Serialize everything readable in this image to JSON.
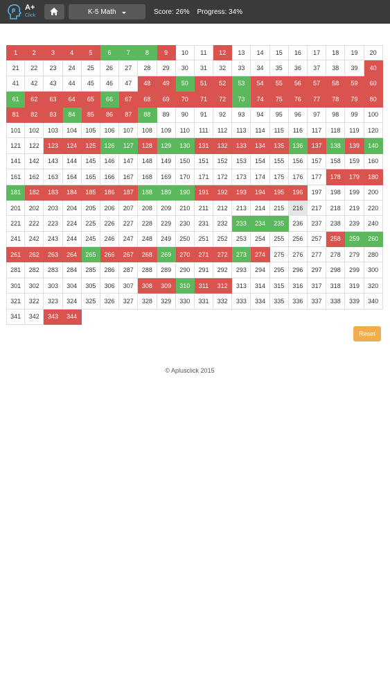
{
  "header": {
    "logo_text": "A+",
    "logo_subtext": "Click",
    "logo_icon": "head-silhouette-icon",
    "home_icon": "home-icon",
    "dropdown_label": "K-5 Math",
    "score": "Score: 26%",
    "progress": "Progress: 34%"
  },
  "grid": {
    "total_cells": 344,
    "columns": 20,
    "current": 216,
    "wrong": [
      1,
      2,
      3,
      4,
      5,
      9,
      12,
      40,
      48,
      49,
      51,
      52,
      54,
      55,
      56,
      57,
      58,
      59,
      60,
      62,
      63,
      64,
      65,
      67,
      68,
      69,
      70,
      71,
      72,
      74,
      75,
      76,
      77,
      78,
      79,
      80,
      81,
      82,
      83,
      85,
      86,
      87,
      123,
      124,
      125,
      128,
      131,
      132,
      133,
      134,
      135,
      137,
      139,
      178,
      179,
      180,
      182,
      183,
      184,
      185,
      186,
      187,
      191,
      192,
      193,
      194,
      195,
      196,
      258,
      261,
      262,
      263,
      264,
      266,
      267,
      268,
      270,
      271,
      272,
      274,
      308,
      309,
      311,
      312,
      343,
      344
    ],
    "right": [
      6,
      7,
      8,
      50,
      53,
      61,
      66,
      73,
      84,
      88,
      126,
      127,
      129,
      130,
      136,
      138,
      140,
      181,
      188,
      189,
      190,
      233,
      234,
      235,
      259,
      260,
      265,
      269,
      273,
      310
    ]
  },
  "colors": {
    "wrong": "#d9534f",
    "right": "#5cb85c",
    "current": "#e6e6e6",
    "reset": "#f0ad4e",
    "navbar": "#3a3a3a"
  },
  "reset_label": "Reset",
  "footer": "© Aplusclick 2015"
}
